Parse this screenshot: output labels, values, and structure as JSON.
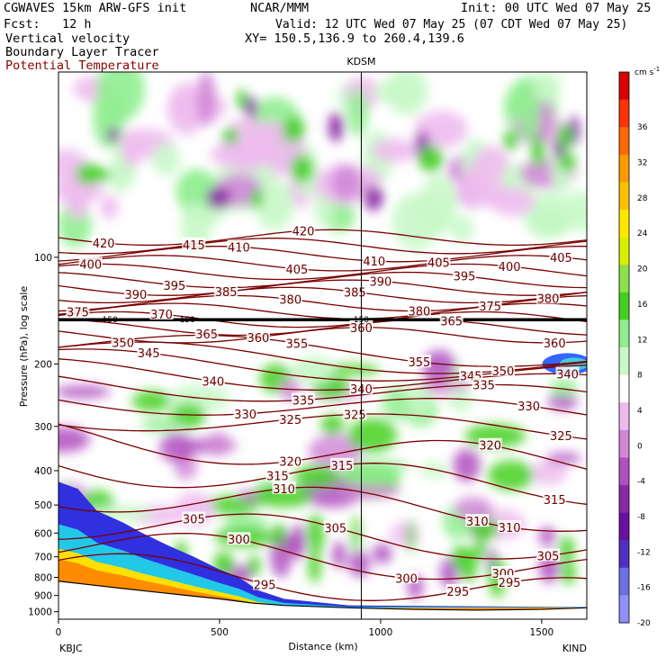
{
  "header": {
    "line1_left": "CGWAVES 15km ARW-GFS init",
    "line1_mid": "NCAR/MMM",
    "line1_right": "Init: 00 UTC Wed 07 May 25",
    "line2_left": "Fcst:   12 h",
    "line2_right": "Valid: 12 UTC Wed 07 May 25 (07 CDT Wed 07 May 25)",
    "line3_left": "Vertical velocity",
    "line3_right": "XY= 150.5,136.9 to 260.4,139.6",
    "line4_left": "Boundary Layer Tracer",
    "line5_left": "Potential Temperature"
  },
  "colors": {
    "theta": "#7a0000",
    "header_red": "#8b0000"
  },
  "chart_data": {
    "type": "heatmap",
    "title": "KDSM",
    "xlabel": "Distance (km)",
    "ylabel": "Pressure (hPa), log scale",
    "x_ticks": [
      0,
      500,
      1000,
      1500
    ],
    "x_range": [
      0,
      1640
    ],
    "y_ticks": [
      100,
      200,
      300,
      400,
      500,
      600,
      700,
      800,
      900,
      1000
    ],
    "y_scale": "log",
    "y_range": [
      1050,
      30
    ],
    "left_station": "KBJC",
    "right_station": "KIND",
    "marker_station_x": 940,
    "colorbar": {
      "units": "cm s-1",
      "labels": [
        "36",
        "32",
        "28",
        "24",
        "20",
        "16",
        "12",
        "8",
        "4",
        "0",
        "-4",
        "-8",
        "-12",
        "-16",
        "-20"
      ],
      "colors": [
        "#d90000",
        "#ff3300",
        "#ff6a00",
        "#ff9900",
        "#ffc000",
        "#ffe800",
        "#d8f000",
        "#8ee04a",
        "#44d020",
        "#90ee90",
        "#c8f8c8",
        "#ffffff",
        "#eebbee",
        "#d288d8",
        "#b050c0",
        "#8c2aa6",
        "#6a10a0",
        "#5030c0",
        "#6c70e0",
        "#9090ff"
      ]
    },
    "tropopause_label": "150",
    "theta_contours": [
      {
        "level": 420,
        "label_x": [
          130,
          760
        ]
      },
      {
        "level": 415,
        "label_x": [
          420
        ]
      },
      {
        "level": 410,
        "label_x": [
          560,
          980
        ]
      },
      {
        "level": 405,
        "label_x": [
          730,
          1170,
          1560
        ]
      },
      {
        "level": 400,
        "label_x": [
          90,
          1390
        ]
      },
      {
        "level": 395,
        "label_x": [
          360,
          1250
        ]
      },
      {
        "level": 390,
        "label_x": [
          230,
          990
        ]
      },
      {
        "level": 385,
        "label_x": [
          520,
          920
        ]
      },
      {
        "level": 380,
        "label_x": [
          720,
          1120,
          1520
        ]
      },
      {
        "level": 375,
        "label_x": [
          60,
          1330
        ]
      },
      {
        "level": 370,
        "label_x": [
          310
        ]
      },
      {
        "level": 365,
        "label_x": [
          450,
          1210
        ]
      },
      {
        "level": 360,
        "label_x": [
          610,
          940,
          1530
        ]
      },
      {
        "level": 355,
        "label_x": [
          740,
          1120
        ]
      },
      {
        "level": 350,
        "label_x": [
          200,
          1370
        ]
      },
      {
        "level": 345,
        "label_x": [
          280,
          1270
        ]
      },
      {
        "level": 340,
        "label_x": [
          470,
          940,
          1570
        ]
      },
      {
        "level": 335,
        "label_x": [
          750,
          1310
        ]
      },
      {
        "level": 330,
        "label_x": [
          580,
          1450
        ]
      },
      {
        "level": 325,
        "label_x": [
          710,
          920,
          1560
        ]
      },
      {
        "level": 320,
        "label_x": [
          720,
          1340
        ]
      },
      {
        "level": 315,
        "label_x": [
          670,
          870,
          1530
        ]
      },
      {
        "level": 310,
        "label_x": [
          690,
          1300,
          1400
        ]
      },
      {
        "level": 305,
        "label_x": [
          420,
          860,
          1510
        ]
      },
      {
        "level": 300,
        "label_x": [
          550,
          1070,
          1380
        ]
      },
      {
        "level": 295,
        "label_x": [
          640,
          1240,
          1400
        ]
      }
    ],
    "grid": false
  }
}
